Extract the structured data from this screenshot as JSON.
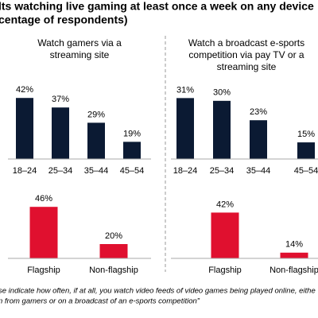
{
  "header": {
    "title": [
      "lts watching live gaming at least once a week on any device",
      "centage of respondents)"
    ]
  },
  "footnote": [
    "se indicate how often, if at all, you watch video feeds of video games being played online, eithe",
    "n from gamers or on a broadcast of an e-sports competition”"
  ],
  "chart_data": [
    {
      "type": "bar",
      "title": [
        "Watch gamers via a",
        "streaming site"
      ],
      "categories": [
        "18–24",
        "25–34",
        "35–44",
        "45–54"
      ],
      "values": [
        42,
        37,
        29,
        19
      ],
      "value_labels": [
        "42%",
        "37%",
        "29%",
        "19%"
      ],
      "color": "#0b1a33",
      "ylim": [
        10,
        50
      ]
    },
    {
      "type": "bar",
      "title": [
        "Watch a broadcast e-sports",
        "competition via pay TV or a",
        "streaming site"
      ],
      "categories": [
        "18–24",
        "25–34",
        "35–44",
        "45–54"
      ],
      "values": [
        31,
        30,
        23,
        15
      ],
      "value_labels": [
        "31%",
        "30%",
        "23%",
        "15%"
      ],
      "color": "#0b1a33",
      "ylim": [
        9,
        40
      ]
    },
    {
      "type": "bar",
      "categories": [
        "Flagship",
        "Non-flagship"
      ],
      "values": [
        46,
        20
      ],
      "value_labels": [
        "46%",
        "20%"
      ],
      "color": "#e0102f",
      "ylim": [
        10,
        50
      ]
    },
    {
      "type": "bar",
      "categories": [
        "Flagship",
        "Non-flagship"
      ],
      "values": [
        42,
        14
      ],
      "value_labels": [
        "42%",
        "14%"
      ],
      "color": "#e0102f",
      "ylim": [
        10,
        50
      ]
    }
  ]
}
